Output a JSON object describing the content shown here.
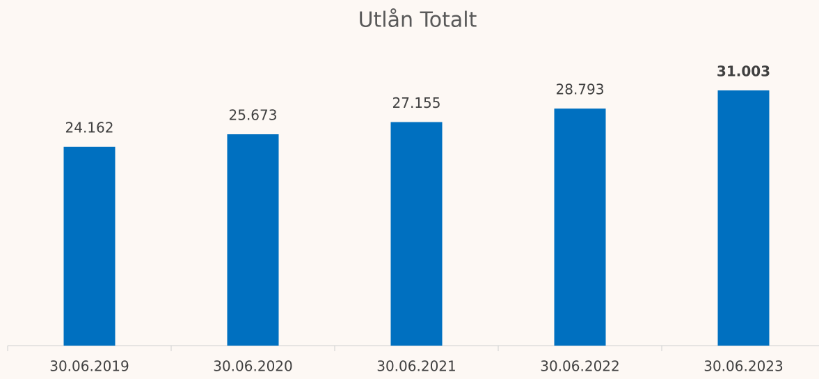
{
  "chart_data": {
    "type": "bar",
    "title": "Utlån Totalt",
    "categories": [
      "30.06.2019",
      "30.06.2020",
      "30.06.2021",
      "30.06.2022",
      "30.06.2023"
    ],
    "values": [
      24.162,
      25.673,
      27.155,
      28.793,
      31.003
    ],
    "color": "#0070c0"
  }
}
